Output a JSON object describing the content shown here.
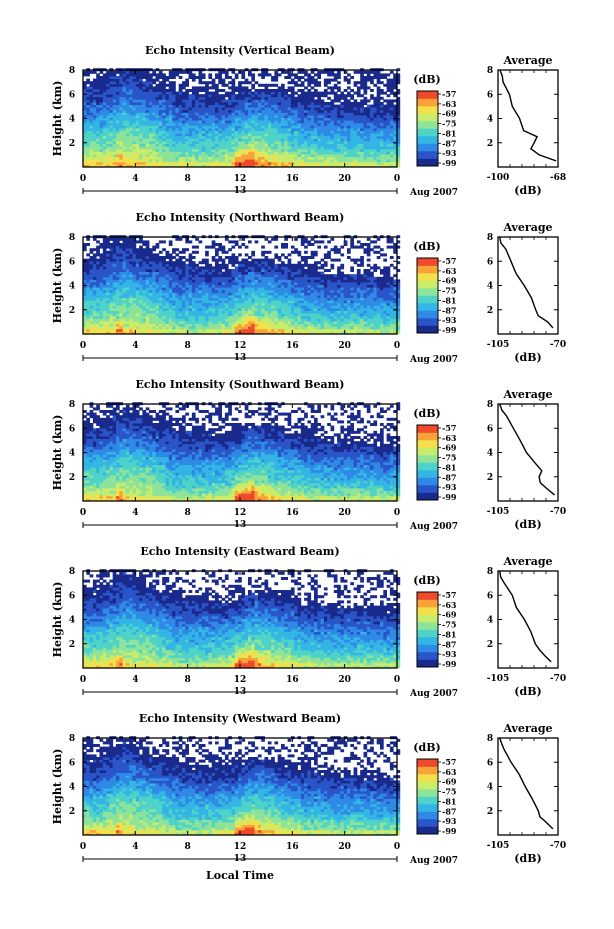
{
  "common": {
    "colorbar_unit": "(dB)",
    "colorbar_ticks": [
      "-57",
      "-63",
      "-69",
      "-75",
      "-81",
      "-87",
      "-93",
      "-99"
    ],
    "y_label": "Height (km)",
    "y_ticks": [
      "8",
      "6",
      "4",
      "2"
    ],
    "x_ticks": [
      "0",
      "4",
      "8",
      "12",
      "16",
      "20",
      "0"
    ],
    "day_label": "13",
    "month_label": "Aug 2007",
    "x_axis_label": "Local Time",
    "avg_title": "Average",
    "avg_unit": "(dB)",
    "avg_y_ticks": [
      "8",
      "6",
      "4",
      "2"
    ]
  },
  "panels": [
    {
      "title": "Echo Intensity (Vertical Beam)",
      "avg_xlim": [
        "-100",
        "-68"
      ]
    },
    {
      "title": "Echo Intensity (Northward Beam)",
      "avg_xlim": [
        "-105",
        "-70"
      ]
    },
    {
      "title": "Echo Intensity (Southward Beam)",
      "avg_xlim": [
        "-105",
        "-70"
      ]
    },
    {
      "title": "Echo Intensity (Eastward Beam)",
      "avg_xlim": [
        "-105",
        "-70"
      ]
    },
    {
      "title": "Echo Intensity (Westward Beam)",
      "avg_xlim": [
        "-105",
        "-70"
      ]
    }
  ],
  "chart_data": {
    "type": "heatmap",
    "x_unit": "local time (hours)",
    "x_range": [
      0,
      24
    ],
    "y_range": [
      0,
      8
    ],
    "color_range_db": [
      -99,
      -57
    ],
    "colormap": [
      "#1a2a8c",
      "#2a55c8",
      "#2f8ae6",
      "#33b5e5",
      "#4fd3c8",
      "#8ee39a",
      "#c9ec6a",
      "#f4e04a",
      "#f8a33a",
      "#ee4a2b"
    ],
    "time_hours": [
      0,
      2,
      4,
      6,
      8,
      10,
      12,
      14,
      16,
      18,
      20,
      22
    ],
    "height_km": [
      0.5,
      1.5,
      2.5,
      3.5,
      4.5,
      5.5,
      6.5,
      7.5
    ],
    "intensity_db_vertical": [
      [
        -70,
        -69,
        -72,
        -75,
        -75,
        -73,
        -64,
        -70,
        -74,
        -75,
        -75,
        -76
      ],
      [
        -78,
        -74,
        -76,
        -81,
        -81,
        -80,
        -74,
        -78,
        -81,
        -82,
        -82,
        -83
      ],
      [
        -80,
        -77,
        -78,
        -84,
        -84,
        -83,
        -78,
        -81,
        -85,
        -86,
        -86,
        -87
      ],
      [
        -86,
        -81,
        -83,
        -88,
        -88,
        -88,
        -83,
        -86,
        -89,
        -90,
        -90,
        -91
      ],
      [
        -91,
        -86,
        -88,
        -92,
        -93,
        -93,
        -88,
        -91,
        -93,
        -95,
        -95,
        -96
      ],
      [
        -94,
        -90,
        -92,
        -95,
        -96,
        -97,
        -92,
        -95,
        -97,
        -99,
        -99,
        -99
      ],
      [
        -97,
        -93,
        -96,
        -99,
        -99,
        -99,
        -99,
        -99,
        -99,
        -99,
        -99,
        -99
      ],
      [
        -99,
        -96,
        -99,
        -99,
        -99,
        -99,
        -99,
        -99,
        -99,
        -99,
        -99,
        -99
      ]
    ],
    "average_profiles": [
      {
        "beam": "Vertical",
        "height_km": [
          0.5,
          1,
          1.5,
          2,
          2.5,
          3,
          4,
          5,
          6,
          7,
          7.5,
          8
        ],
        "db": [
          -69,
          -78,
          -82,
          -81,
          -79,
          -86,
          -89,
          -92,
          -94,
          -97,
          -98,
          -99
        ]
      },
      {
        "beam": "Northward",
        "height_km": [
          0.5,
          1,
          1.5,
          2,
          3,
          4,
          5,
          6,
          7,
          7.5,
          8
        ],
        "db": [
          -73,
          -76,
          -81,
          -83,
          -86,
          -90,
          -94,
          -97,
          -101,
          -103,
          -104
        ]
      },
      {
        "beam": "Southward",
        "height_km": [
          0.5,
          1,
          1.5,
          2,
          2.5,
          3,
          4,
          5,
          6,
          7,
          7.5,
          8
        ],
        "db": [
          -72,
          -76,
          -80,
          -81,
          -79,
          -83,
          -88,
          -92,
          -96,
          -100,
          -103,
          -104
        ]
      },
      {
        "beam": "Eastward",
        "height_km": [
          0.5,
          1,
          1.5,
          2,
          3,
          4,
          5,
          6,
          7,
          7.5,
          8
        ],
        "db": [
          -74,
          -77,
          -81,
          -83,
          -86,
          -90,
          -94,
          -97,
          -101,
          -103,
          -104
        ]
      },
      {
        "beam": "Westward",
        "height_km": [
          0.5,
          1,
          1.5,
          2,
          3,
          4,
          5,
          6,
          7,
          7.5,
          8
        ],
        "db": [
          -73,
          -76,
          -80,
          -82,
          -85,
          -89,
          -93,
          -97,
          -101,
          -103,
          -104
        ]
      }
    ]
  }
}
